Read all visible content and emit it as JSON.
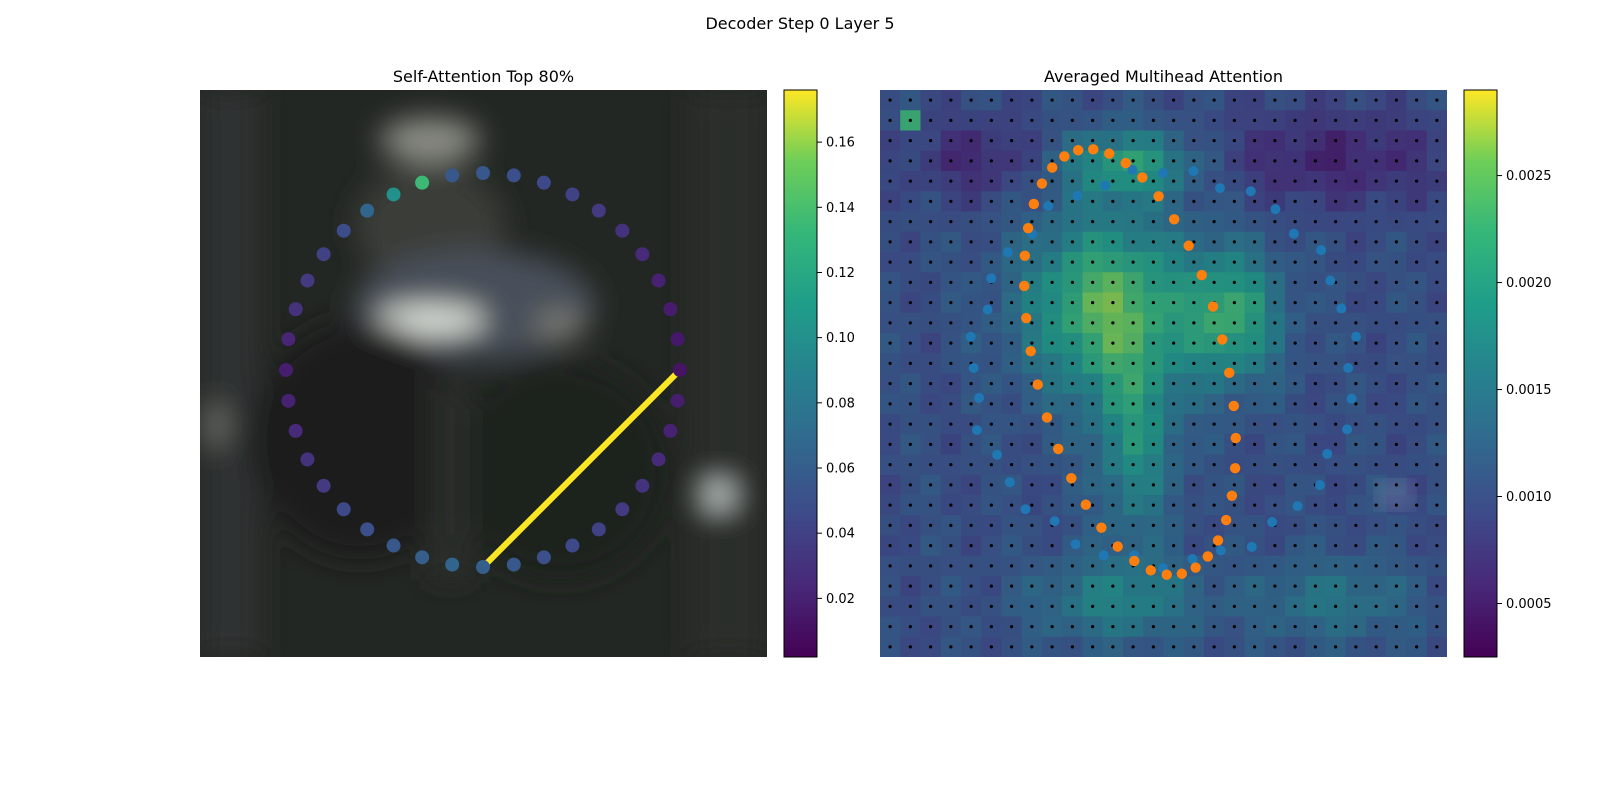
{
  "figure": {
    "title": "Decoder Step 0 Layer 5"
  },
  "colors": {
    "blue_dots": "#1f77b4",
    "orange_dots": "#ff7f0e",
    "grid_dots": "#000000",
    "self_attention_link": "#fde725"
  },
  "chart_data": [
    {
      "type": "scatter",
      "title": "Self-Attention Top 80%",
      "background": "blurred dark video frame (image)",
      "colormap": "viridis",
      "colorbar": {
        "range": [
          0.002,
          0.176
        ],
        "ticks": [
          0.02,
          0.04,
          0.06,
          0.08,
          0.1,
          0.12,
          0.14,
          0.16
        ],
        "tick_labels": [
          "0.02",
          "0.04",
          "0.06",
          "0.08",
          "0.10",
          "0.12",
          "0.14",
          "0.16"
        ]
      },
      "points_description": "40 points arranged on a circle (contour vertices), colored by self-attention weight",
      "point_values": [
        0.055,
        0.05,
        0.045,
        0.04,
        0.035,
        0.03,
        0.025,
        0.02,
        0.017,
        0.015,
        0.012,
        0.018,
        0.02,
        0.025,
        0.03,
        0.035,
        0.04,
        0.045,
        0.05,
        0.055,
        0.06,
        0.065,
        0.06,
        0.055,
        0.05,
        0.045,
        0.035,
        0.03,
        0.025,
        0.02,
        0.018,
        0.022,
        0.03,
        0.035,
        0.04,
        0.048,
        0.065,
        0.1,
        0.135,
        0.055
      ],
      "highlighted_link": {
        "from_point": 20,
        "to_point": 10,
        "value": 0.176
      },
      "grid": false
    },
    {
      "type": "heatmap",
      "title": "Averaged Multihead Attention",
      "colormap": "viridis",
      "colorbar": {
        "range": [
          0.00025,
          0.0029
        ],
        "ticks": [
          0.0005,
          0.001,
          0.0015,
          0.002,
          0.0025
        ],
        "tick_labels": [
          "0.0005",
          "0.0010",
          "0.0015",
          "0.0020",
          "0.0025"
        ]
      },
      "grid_size": [
        28,
        28
      ],
      "overlay_series": [
        {
          "color": "#1f77b4",
          "kind": "scatter",
          "description": "contour points (blue)"
        },
        {
          "color": "#ff7f0e",
          "kind": "scatter",
          "description": "contour points (orange)"
        }
      ],
      "grid": false
    }
  ]
}
